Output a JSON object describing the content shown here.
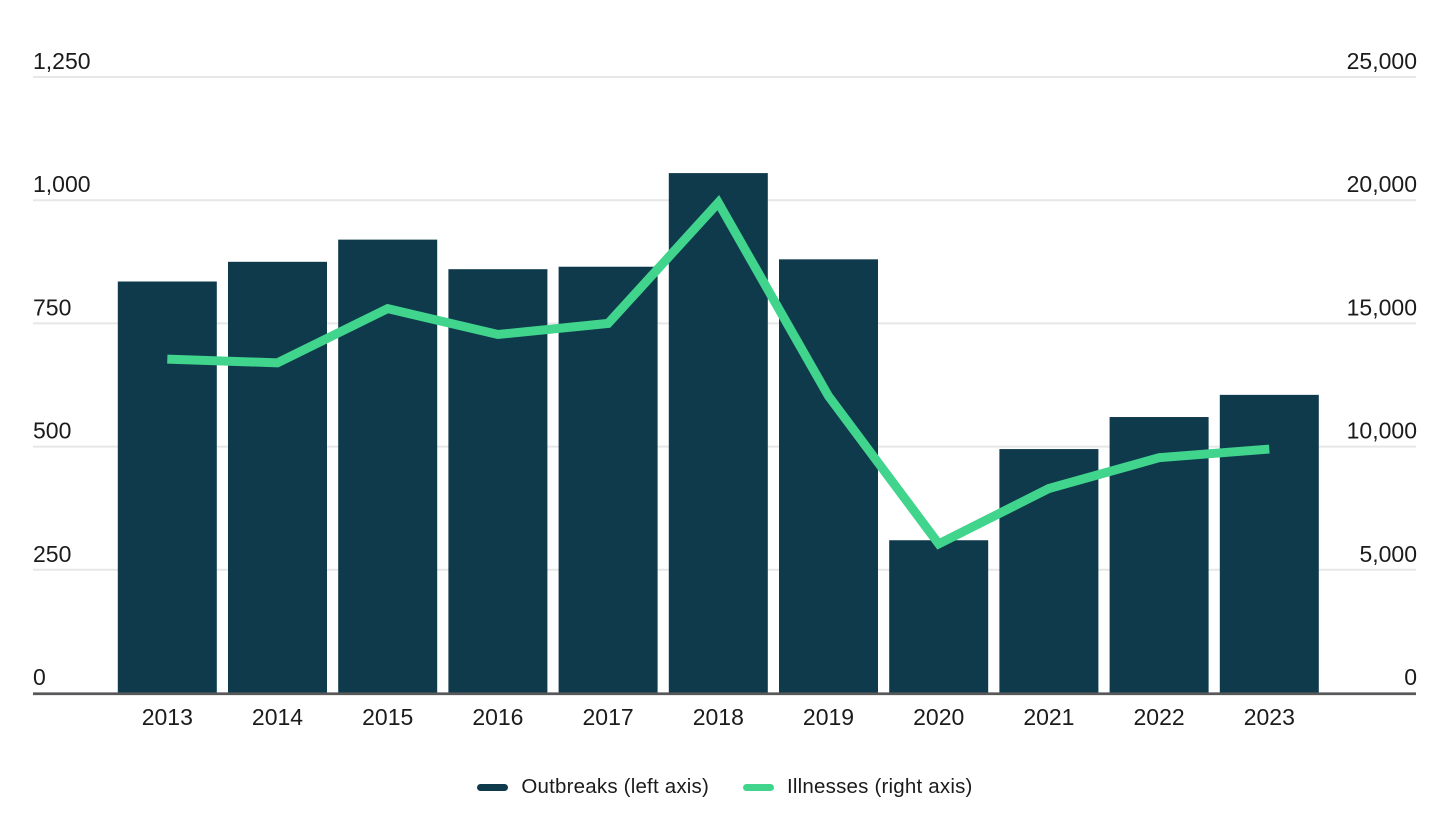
{
  "chart_data": {
    "type": "combo-bar-line",
    "title": "",
    "categories": [
      "2013",
      "2014",
      "2015",
      "2016",
      "2017",
      "2018",
      "2019",
      "2020",
      "2021",
      "2022",
      "2023"
    ],
    "series": [
      {
        "name": "Outbreaks (left axis)",
        "type": "bar",
        "axis": "left",
        "color": "#0e3a4c",
        "values": [
          835,
          875,
          920,
          860,
          865,
          1055,
          880,
          310,
          495,
          560,
          605
        ]
      },
      {
        "name": "Illnesses (right axis)",
        "type": "line",
        "axis": "right",
        "color": "#41d48d",
        "values": [
          13550,
          13400,
          15600,
          14550,
          15000,
          19900,
          12050,
          6050,
          8300,
          9550,
          9900
        ]
      }
    ],
    "left_axis": {
      "min": 0,
      "max": 1250,
      "tick_values": [
        0,
        250,
        500,
        750,
        1000,
        1250
      ],
      "tick_labels": [
        "0",
        "250",
        "500",
        "750",
        "1,000",
        "1,250"
      ]
    },
    "right_axis": {
      "min": 0,
      "max": 25000,
      "tick_values": [
        0,
        5000,
        10000,
        15000,
        20000,
        25000
      ],
      "tick_labels": [
        "0",
        "5,000",
        "10,000",
        "15,000",
        "20,000",
        "25,000"
      ]
    },
    "grid": true,
    "legend_position": "bottom"
  },
  "colors": {
    "bar": "#0e3a4c",
    "line": "#41d48d",
    "gridline": "#e7e7e7",
    "axis_line": "#57585a",
    "text": "#1b1b1b",
    "background": "#ffffff"
  }
}
